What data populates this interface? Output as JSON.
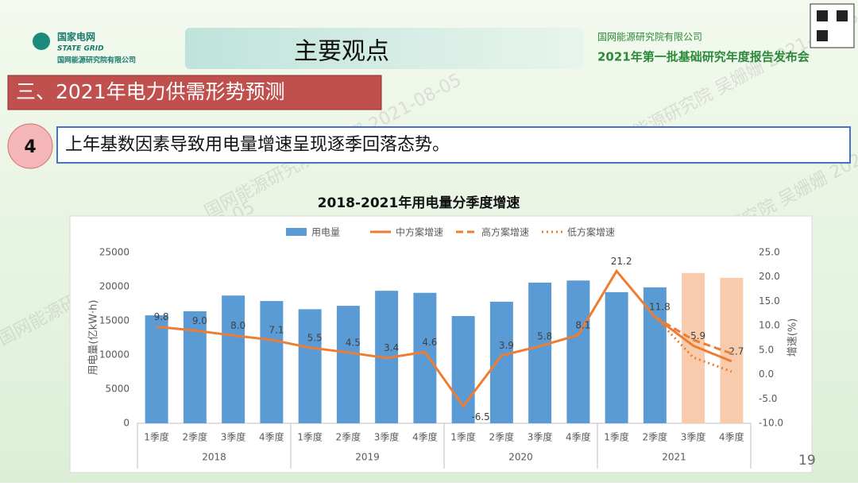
{
  "header": {
    "logo_cn": "国家电网",
    "logo_en": "STATE GRID",
    "logo_org": "国网能源研究院有限公司",
    "title": "主要观点",
    "org": "国网能源研究院有限公司",
    "event": "2021年第一批基础研究年度报告发布会"
  },
  "section": "三、2021年电力供需形势预测",
  "point": {
    "number": "4",
    "text": "上年基数因素导致用电量增速呈现逐季回落态势。"
  },
  "watermark": "国网能源研究院 吴姗姗 2021-08-05",
  "page_number": "19",
  "chart_data": {
    "type": "combo",
    "title": "2018-2021年用电量分季度增速",
    "categories": [
      "1季度",
      "2季度",
      "3季度",
      "4季度",
      "1季度",
      "2季度",
      "3季度",
      "4季度",
      "1季度",
      "2季度",
      "3季度",
      "4季度",
      "1季度",
      "2季度",
      "3季度",
      "4季度"
    ],
    "groups": [
      "2018",
      "2019",
      "2020",
      "2021"
    ],
    "ylabel": "用电量(亿kW·h)",
    "y2label": "增速(%)",
    "ylim": [
      0,
      25000
    ],
    "yticks": [
      0,
      5000,
      10000,
      15000,
      20000,
      25000
    ],
    "y2lim": [
      -10,
      25
    ],
    "y2ticks": [
      {
        "value": -10,
        "label": "-10.0"
      },
      {
        "value": -5,
        "label": "-5.0"
      },
      {
        "value": 0,
        "label": "0.0"
      },
      {
        "value": 5,
        "label": "5.0"
      },
      {
        "value": 10,
        "label": "10.0"
      },
      {
        "value": 15,
        "label": "15.0"
      },
      {
        "value": 20,
        "label": "20.0"
      },
      {
        "value": 25,
        "label": "25.0"
      }
    ],
    "series": [
      {
        "name": "用电量",
        "type": "bar",
        "colors": [
          "#5b9bd5",
          "#5b9bd5",
          "#5b9bd5",
          "#5b9bd5",
          "#5b9bd5",
          "#5b9bd5",
          "#5b9bd5",
          "#5b9bd5",
          "#5b9bd5",
          "#5b9bd5",
          "#5b9bd5",
          "#5b9bd5",
          "#5b9bd5",
          "#5b9bd5",
          "#f8cbad",
          "#f8cbad"
        ],
        "values": [
          15800,
          16400,
          18700,
          17900,
          16700,
          17200,
          19400,
          19100,
          15700,
          17800,
          20600,
          20900,
          19200,
          19900,
          22000,
          21300
        ]
      },
      {
        "name": "中方案增速",
        "type": "line",
        "style": "solid",
        "color": "#ed7d31",
        "axis": "y2",
        "values": [
          9.8,
          9.0,
          8.0,
          7.1,
          5.5,
          4.5,
          3.4,
          4.6,
          -6.5,
          3.9,
          5.8,
          8.1,
          21.2,
          11.8,
          5.9,
          2.7
        ],
        "value_labels": [
          "9.8",
          "9.0",
          "8.0",
          "7.1",
          "5.5",
          "4.5",
          "3.4",
          "4.6",
          "-6.5",
          "3.9",
          "5.8",
          "8.1",
          "21.2",
          "11.8",
          "5.9",
          "2.7"
        ]
      },
      {
        "name": "高方案增速",
        "type": "line",
        "style": "dashed",
        "color": "#ed7d31",
        "axis": "y2",
        "values": [
          null,
          null,
          null,
          null,
          null,
          null,
          null,
          null,
          null,
          null,
          null,
          null,
          null,
          11.8,
          7.1,
          4.3
        ]
      },
      {
        "name": "低方案增速",
        "type": "line",
        "style": "dotted",
        "color": "#ed7d31",
        "axis": "y2",
        "values": [
          null,
          null,
          null,
          null,
          null,
          null,
          null,
          null,
          null,
          null,
          null,
          null,
          null,
          11.8,
          3.5,
          0.6
        ]
      }
    ]
  }
}
